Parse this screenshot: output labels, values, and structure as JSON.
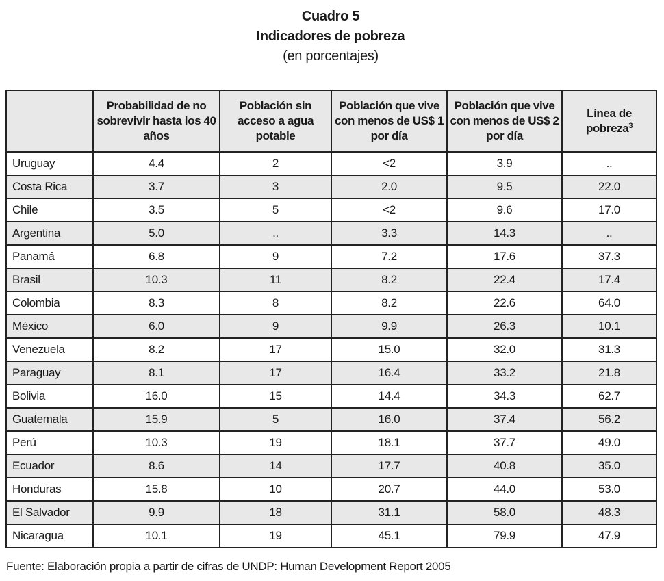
{
  "title": {
    "line1": "Cuadro 5",
    "line2": "Indicadores de pobreza",
    "line3": "(en porcentajes)"
  },
  "table": {
    "columns": [
      {
        "label": "",
        "footnote": ""
      },
      {
        "label": "Probabilidad de no sobrevivir hasta los 40 años",
        "footnote": ""
      },
      {
        "label": "Población sin acceso a agua potable",
        "footnote": ""
      },
      {
        "label": "Población que vive con menos de US$ 1 por día",
        "footnote": ""
      },
      {
        "label": "Población que vive con menos de US$ 2 por día",
        "footnote": ""
      },
      {
        "label": "Línea de pobreza",
        "footnote": "3"
      }
    ],
    "rows": [
      [
        "Uruguay",
        "4.4",
        "2",
        "<2",
        "3.9",
        ".."
      ],
      [
        "Costa Rica",
        "3.7",
        "3",
        "2.0",
        "9.5",
        "22.0"
      ],
      [
        "Chile",
        "3.5",
        "5",
        "<2",
        "9.6",
        "17.0"
      ],
      [
        "Argentina",
        "5.0",
        "..",
        "3.3",
        "14.3",
        ".."
      ],
      [
        "Panamá",
        "6.8",
        "9",
        "7.2",
        "17.6",
        "37.3"
      ],
      [
        "Brasil",
        "10.3",
        "11",
        "8.2",
        "22.4",
        "17.4"
      ],
      [
        "Colombia",
        "8.3",
        "8",
        "8.2",
        "22.6",
        "64.0"
      ],
      [
        "México",
        "6.0",
        "9",
        "9.9",
        "26.3",
        "10.1"
      ],
      [
        "Venezuela",
        "8.2",
        "17",
        "15.0",
        "32.0",
        "31.3"
      ],
      [
        "Paraguay",
        "8.1",
        "17",
        "16.4",
        "33.2",
        "21.8"
      ],
      [
        "Bolivia",
        "16.0",
        "15",
        "14.4",
        "34.3",
        "62.7"
      ],
      [
        "Guatemala",
        "15.9",
        "5",
        "16.0",
        "37.4",
        "56.2"
      ],
      [
        "Perú",
        "10.3",
        "19",
        "18.1",
        "37.7",
        "49.0"
      ],
      [
        "Ecuador",
        "8.6",
        "14",
        "17.7",
        "40.8",
        "35.0"
      ],
      [
        "Honduras",
        "15.8",
        "10",
        "20.7",
        "44.0",
        "53.0"
      ],
      [
        "El Salvador",
        "9.9",
        "18",
        "31.1",
        "58.0",
        "48.3"
      ],
      [
        "Nicaragua",
        "10.1",
        "19",
        "45.1",
        "79.9",
        "47.9"
      ]
    ]
  },
  "source": "Fuente: Elaboración propia a partir de cifras de UNDP: Human Development Report 2005",
  "colors": {
    "row_stripe": "#e8e8e8",
    "header_bg": "#e8e8e8",
    "border": "#222222",
    "text": "#1a1a1a",
    "page_bg": "#ffffff"
  }
}
